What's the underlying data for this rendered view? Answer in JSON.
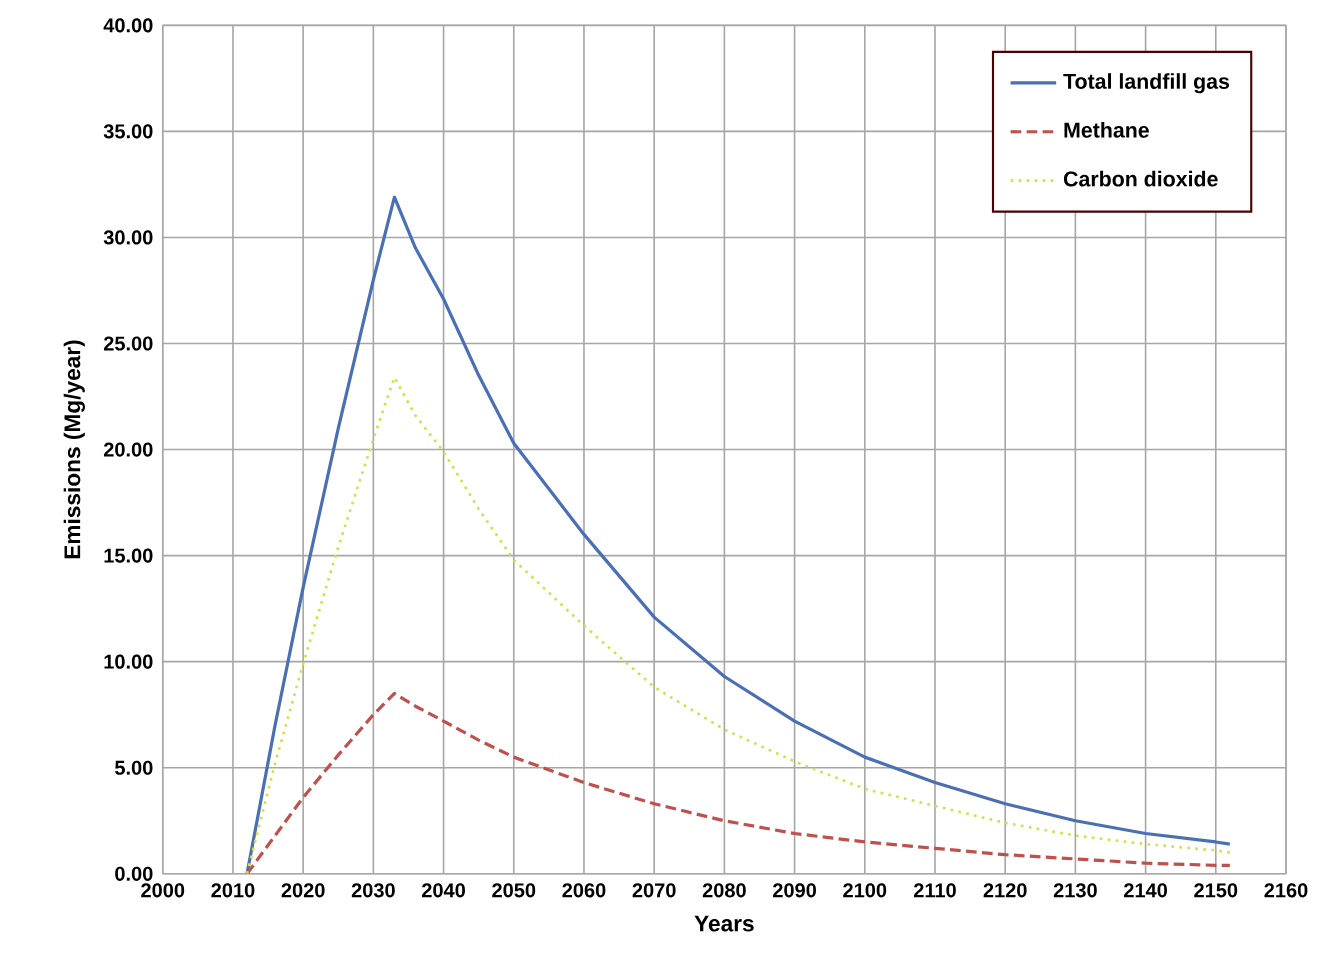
{
  "chart_data": {
    "type": "line",
    "xlabel": "Years",
    "ylabel": "Emissions (Mg/year)",
    "xlim": [
      2000,
      2160
    ],
    "xticks": [
      2000,
      2010,
      2020,
      2030,
      2040,
      2050,
      2060,
      2070,
      2080,
      2090,
      2100,
      2110,
      2120,
      2130,
      2140,
      2150,
      2160
    ],
    "ylim": [
      0,
      40
    ],
    "yticks": [
      {
        "value": 0,
        "label": "0.00"
      },
      {
        "value": 5,
        "label": "5.00"
      },
      {
        "value": 10,
        "label": "10.00"
      },
      {
        "value": 15,
        "label": "15.00"
      },
      {
        "value": 20,
        "label": "20.00"
      },
      {
        "value": 25,
        "label": "25.00"
      },
      {
        "value": 30,
        "label": "30.00"
      },
      {
        "value": 35,
        "label": "35.00"
      },
      {
        "value": 40,
        "label": "40.00"
      }
    ],
    "grid": true,
    "legend": "top right",
    "marker": "none",
    "x": [
      2012,
      2016,
      2020,
      2025,
      2030,
      2033,
      2036,
      2040,
      2045,
      2050,
      2060,
      2070,
      2080,
      2090,
      2100,
      2110,
      2120,
      2130,
      2140,
      2150,
      2152
    ],
    "series": [
      {
        "name": "Total landfill gas",
        "color": "#4a6fb5",
        "line_style": "solid",
        "values": [
          0,
          7,
          13.5,
          21,
          28,
          31.9,
          29.5,
          27.1,
          23.5,
          20.3,
          16.0,
          12.1,
          9.3,
          7.2,
          5.5,
          4.3,
          3.3,
          2.5,
          1.9,
          1.5,
          1.4
        ]
      },
      {
        "name": "Methane",
        "color": "#c0504d",
        "line_style": "dashed",
        "values": [
          0,
          1.8,
          3.6,
          5.6,
          7.5,
          8.5,
          7.9,
          7.2,
          6.3,
          5.5,
          4.3,
          3.3,
          2.5,
          1.9,
          1.5,
          1.2,
          0.9,
          0.7,
          0.5,
          0.4,
          0.4
        ]
      },
      {
        "name": "Carbon dioxide",
        "color": "#d4e04a",
        "line_style": "dotted",
        "values": [
          0,
          5.2,
          9.9,
          15.4,
          20.5,
          23.4,
          21.6,
          19.9,
          17.2,
          14.8,
          11.7,
          8.8,
          6.8,
          5.3,
          4.0,
          3.2,
          2.4,
          1.8,
          1.4,
          1.1,
          1.0
        ]
      }
    ]
  }
}
